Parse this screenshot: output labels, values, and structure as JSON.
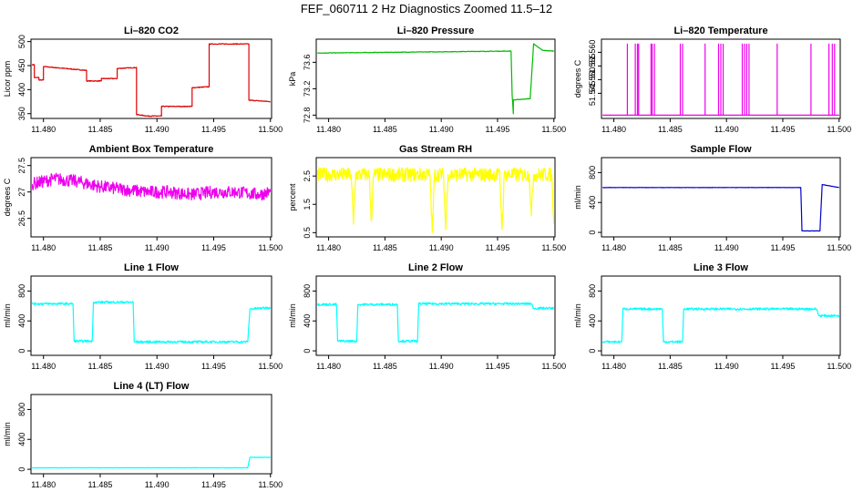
{
  "figure_title": "FEF_060711  2 Hz Diagnostics Zoomed 11.5–12",
  "chart_data": [
    {
      "type": "line",
      "title": "Li–820 CO2",
      "ylabel": "Licor ppm",
      "color": "#dd0000",
      "noise": 0.8,
      "xlim": [
        11.4789,
        11.5001
      ],
      "ylim": [
        340,
        505
      ],
      "yticks": [
        350,
        400,
        450,
        500
      ],
      "ytick_labels": [
        "350",
        "400",
        "450",
        "500"
      ],
      "xticks": [
        11.48,
        11.485,
        11.49,
        11.495,
        11.5
      ],
      "xtick_labels": [
        "11.480",
        "11.485",
        "11.490",
        "11.495",
        "11.500"
      ],
      "x": [
        11.479,
        11.4792,
        11.4792,
        11.4796,
        11.4796,
        11.48,
        11.48,
        11.4838,
        11.4838,
        11.4851,
        11.4851,
        11.4865,
        11.4865,
        11.4882,
        11.4882,
        11.4892,
        11.4892,
        11.4904,
        11.4904,
        11.4917,
        11.4917,
        11.4931,
        11.4931,
        11.4946,
        11.4946,
        11.4981,
        11.4981,
        11.5
      ],
      "y": [
        452,
        452,
        425,
        425,
        420,
        420,
        448,
        440,
        418,
        418,
        423,
        423,
        444,
        446,
        348,
        345,
        345,
        345,
        365,
        365,
        365,
        365,
        404,
        406,
        495,
        495,
        378,
        375
      ]
    },
    {
      "type": "line",
      "title": "Li–820 Pressure",
      "ylabel": "kPa",
      "color": "#00bb00",
      "noise": 0.004,
      "xlim": [
        11.4789,
        11.5001
      ],
      "ylim": [
        72.75,
        73.95
      ],
      "yticks": [
        72.8,
        73.2,
        73.6
      ],
      "ytick_labels": [
        "72.8",
        "73.2",
        "73.6"
      ],
      "xticks": [
        11.48,
        11.485,
        11.49,
        11.495,
        11.5
      ],
      "xtick_labels": [
        "11.480",
        "11.485",
        "11.490",
        "11.495",
        "11.500"
      ],
      "x": [
        11.479,
        11.4962,
        11.4963,
        11.4964,
        11.4964,
        11.4979,
        11.4982,
        11.499,
        11.5
      ],
      "y": [
        73.74,
        73.77,
        73.1,
        72.82,
        73.03,
        73.05,
        73.88,
        73.78,
        73.77
      ]
    },
    {
      "type": "line",
      "title": "Li–820 Temperature",
      "ylabel": "degrees C",
      "color": "#ee00ee",
      "noise": 0,
      "xlim": [
        11.4789,
        11.5001
      ],
      "ylim": [
        51.5358,
        51.5648
      ],
      "yticks": [
        51.545,
        51.55,
        51.555,
        51.56
      ],
      "ytick_labels": [
        "51.545",
        "51.550",
        "51.555",
        "51.560"
      ],
      "xticks": [
        11.48,
        11.485,
        11.49,
        11.495,
        11.5
      ],
      "xtick_labels": [
        "11.480",
        "11.485",
        "11.490",
        "11.495",
        "11.500"
      ],
      "x": [
        11.479,
        11.4812,
        11.4812,
        11.4812,
        11.4819,
        11.4819,
        11.4819,
        11.4821,
        11.4821,
        11.4821,
        11.4822,
        11.4822,
        11.4822,
        11.4833,
        11.4833,
        11.4833,
        11.4834,
        11.4834,
        11.4834,
        11.4836,
        11.4836,
        11.4836,
        11.4859,
        11.4859,
        11.4859,
        11.4861,
        11.4861,
        11.4861,
        11.4881,
        11.4881,
        11.4881,
        11.4893,
        11.4893,
        11.4893,
        11.4895,
        11.4895,
        11.4895,
        11.4897,
        11.4897,
        11.4897,
        11.4914,
        11.4914,
        11.4914,
        11.4916,
        11.4916,
        11.4916,
        11.4918,
        11.4918,
        11.4918,
        11.492,
        11.492,
        11.492,
        11.4945,
        11.4945,
        11.4945,
        11.4975,
        11.4975,
        11.4975,
        11.4991,
        11.4991,
        11.4991,
        11.4994,
        11.4994,
        11.4994,
        11.4996,
        11.4996,
        11.4996,
        11.5
      ],
      "y": [
        51.537,
        51.537,
        51.563,
        51.537,
        51.537,
        51.563,
        51.537,
        51.537,
        51.563,
        51.537,
        51.537,
        51.563,
        51.537,
        51.537,
        51.563,
        51.537,
        51.537,
        51.563,
        51.537,
        51.537,
        51.563,
        51.537,
        51.537,
        51.563,
        51.537,
        51.537,
        51.563,
        51.537,
        51.537,
        51.563,
        51.537,
        51.537,
        51.563,
        51.537,
        51.537,
        51.563,
        51.537,
        51.537,
        51.563,
        51.537,
        51.537,
        51.563,
        51.537,
        51.537,
        51.563,
        51.537,
        51.537,
        51.563,
        51.537,
        51.537,
        51.563,
        51.537,
        51.537,
        51.563,
        51.537,
        51.537,
        51.563,
        51.537,
        51.537,
        51.563,
        51.537,
        51.537,
        51.563,
        51.537,
        51.537,
        51.563,
        51.537,
        51.537
      ]
    },
    {
      "type": "line",
      "title": "Ambient Box Temperature",
      "ylabel": "degrees C",
      "color": "#ee00ee",
      "noise": 0.12,
      "xlim": [
        11.4789,
        11.5001
      ],
      "ylim": [
        26.15,
        27.65
      ],
      "yticks": [
        26.5,
        27.0,
        27.5
      ],
      "ytick_labels": [
        "26.5",
        "27",
        "27.5"
      ],
      "xticks": [
        11.48,
        11.485,
        11.49,
        11.495,
        11.5
      ],
      "xtick_labels": [
        "11.480",
        "11.485",
        "11.490",
        "11.495",
        "11.500"
      ],
      "x": [
        11.479,
        11.481,
        11.483,
        11.485,
        11.487,
        11.489,
        11.491,
        11.493,
        11.495,
        11.497,
        11.499,
        11.5
      ],
      "y": [
        27.15,
        27.25,
        27.2,
        27.1,
        27.05,
        27.0,
        27.0,
        26.95,
        27.0,
        27.0,
        26.95,
        27.0
      ]
    },
    {
      "type": "line",
      "title": "Gas Stream RH",
      "ylabel": "percent",
      "color": "#ffff00",
      "noise": 0.25,
      "xlim": [
        11.4789,
        11.5001
      ],
      "ylim": [
        0.35,
        3.15
      ],
      "yticks": [
        0.5,
        1.5,
        2.5
      ],
      "ytick_labels": [
        "0.5",
        "1.5",
        "2.5"
      ],
      "xticks": [
        11.48,
        11.485,
        11.49,
        11.495,
        11.5
      ],
      "xtick_labels": [
        "11.480",
        "11.485",
        "11.490",
        "11.495",
        "11.500"
      ],
      "x": [
        11.479,
        11.482,
        11.4822,
        11.4824,
        11.4836,
        11.4838,
        11.484,
        11.489,
        11.4892,
        11.4894,
        11.4902,
        11.4904,
        11.4906,
        11.4952,
        11.4954,
        11.4956,
        11.4978,
        11.498,
        11.4982,
        11.4998,
        11.5
      ],
      "y": [
        2.55,
        2.55,
        0.8,
        2.55,
        2.55,
        0.9,
        2.55,
        2.55,
        0.5,
        2.55,
        2.55,
        0.6,
        2.55,
        2.55,
        0.6,
        2.55,
        2.55,
        1.1,
        2.55,
        2.55,
        0.8
      ]
    },
    {
      "type": "line",
      "title": "Sample Flow",
      "ylabel": "ml/min",
      "color": "#0000cc",
      "noise": 2,
      "xlim": [
        11.4789,
        11.5001
      ],
      "ylim": [
        -60,
        1000
      ],
      "yticks": [
        0,
        400,
        800
      ],
      "ytick_labels": [
        "0",
        "400",
        "800"
      ],
      "xticks": [
        11.48,
        11.485,
        11.49,
        11.495,
        11.5
      ],
      "xtick_labels": [
        "11.480",
        "11.485",
        "11.490",
        "11.495",
        "11.500"
      ],
      "x": [
        11.479,
        11.4966,
        11.4967,
        11.4983,
        11.4985,
        11.5
      ],
      "y": [
        600,
        600,
        20,
        20,
        640,
        600
      ]
    },
    {
      "type": "line",
      "title": "Line 1 Flow",
      "ylabel": "ml/min",
      "color": "#00ffff",
      "noise": 15,
      "xlim": [
        11.4789,
        11.5001
      ],
      "ylim": [
        -60,
        1000
      ],
      "yticks": [
        0,
        400,
        800
      ],
      "ytick_labels": [
        "0",
        "400",
        "800"
      ],
      "xticks": [
        11.48,
        11.485,
        11.49,
        11.495,
        11.5
      ],
      "xtick_labels": [
        "11.480",
        "11.485",
        "11.490",
        "11.495",
        "11.500"
      ],
      "x": [
        11.479,
        11.4826,
        11.4827,
        11.4843,
        11.4844,
        11.4879,
        11.488,
        11.498,
        11.4982,
        11.5
      ],
      "y": [
        630,
        630,
        130,
        130,
        650,
        650,
        120,
        120,
        560,
        580
      ]
    },
    {
      "type": "line",
      "title": "Line 2 Flow",
      "ylabel": "ml/min",
      "color": "#00ffff",
      "noise": 15,
      "xlim": [
        11.4789,
        11.5001
      ],
      "ylim": [
        -60,
        1000
      ],
      "yticks": [
        0,
        400,
        800
      ],
      "ytick_labels": [
        "0",
        "400",
        "800"
      ],
      "xticks": [
        11.48,
        11.485,
        11.49,
        11.495,
        11.5
      ],
      "xtick_labels": [
        "11.480",
        "11.485",
        "11.490",
        "11.495",
        "11.500"
      ],
      "x": [
        11.479,
        11.4807,
        11.4808,
        11.4825,
        11.4826,
        11.4861,
        11.4862,
        11.4879,
        11.488,
        11.498,
        11.4982,
        11.5
      ],
      "y": [
        620,
        620,
        130,
        130,
        620,
        620,
        130,
        130,
        630,
        630,
        570,
        570
      ]
    },
    {
      "type": "line",
      "title": "Line 3 Flow",
      "ylabel": "ml/min",
      "color": "#00ffff",
      "noise": 15,
      "xlim": [
        11.4789,
        11.5001
      ],
      "ylim": [
        -60,
        1000
      ],
      "yticks": [
        0,
        400,
        800
      ],
      "ytick_labels": [
        "0",
        "400",
        "800"
      ],
      "xticks": [
        11.48,
        11.485,
        11.49,
        11.495,
        11.5
      ],
      "xtick_labels": [
        "11.480",
        "11.485",
        "11.490",
        "11.495",
        "11.500"
      ],
      "x": [
        11.479,
        11.4807,
        11.4808,
        11.4843,
        11.4844,
        11.4861,
        11.4862,
        11.498,
        11.4982,
        11.5
      ],
      "y": [
        120,
        120,
        560,
        560,
        120,
        120,
        560,
        560,
        470,
        470
      ]
    },
    {
      "type": "line",
      "title": "Line 4 (LT) Flow",
      "ylabel": "ml/min",
      "color": "#00ffff",
      "noise": 2,
      "xlim": [
        11.4789,
        11.5001
      ],
      "ylim": [
        -60,
        1000
      ],
      "yticks": [
        0,
        400,
        800
      ],
      "ytick_labels": [
        "0",
        "400",
        "800"
      ],
      "xticks": [
        11.48,
        11.485,
        11.49,
        11.495,
        11.5
      ],
      "xtick_labels": [
        "11.480",
        "11.485",
        "11.490",
        "11.495",
        "11.500"
      ],
      "x": [
        11.479,
        11.498,
        11.4982,
        11.5
      ],
      "y": [
        20,
        20,
        160,
        160
      ]
    }
  ]
}
